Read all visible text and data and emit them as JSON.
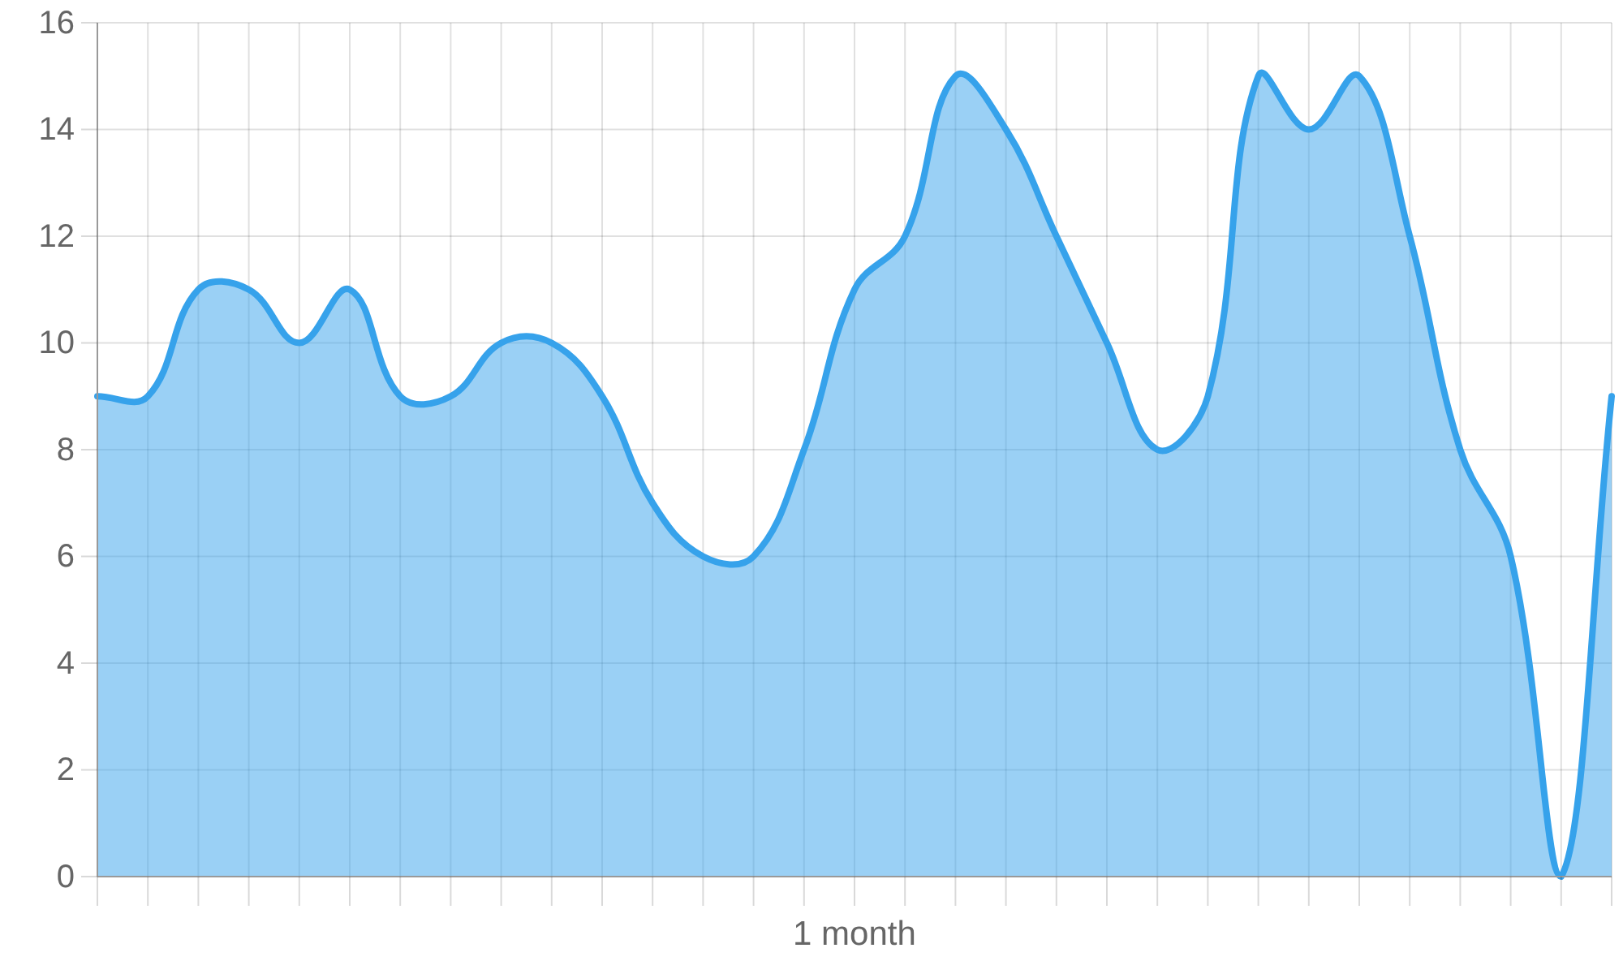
{
  "chart_data": {
    "type": "area",
    "xlabel": "1 month",
    "categories": [
      null,
      null,
      null,
      null,
      null,
      null,
      null,
      null,
      null,
      null,
      null,
      null,
      null,
      null,
      null,
      null,
      null,
      null,
      null,
      null,
      null,
      null,
      null,
      null,
      null,
      null,
      null,
      null,
      null,
      null,
      null
    ],
    "series": [
      {
        "color": "#36a2eb",
        "values": [
          9,
          9,
          11,
          11,
          10,
          11,
          9,
          9,
          10,
          10,
          9,
          7,
          6,
          6,
          8,
          11,
          12,
          15,
          14,
          12,
          10,
          8,
          9,
          15,
          14,
          15,
          12,
          8,
          6,
          0,
          9
        ]
      }
    ],
    "ylim": [
      0,
      16
    ],
    "yticks": [
      0,
      2,
      4,
      6,
      8,
      10,
      12,
      14,
      16
    ],
    "grid": true
  }
}
